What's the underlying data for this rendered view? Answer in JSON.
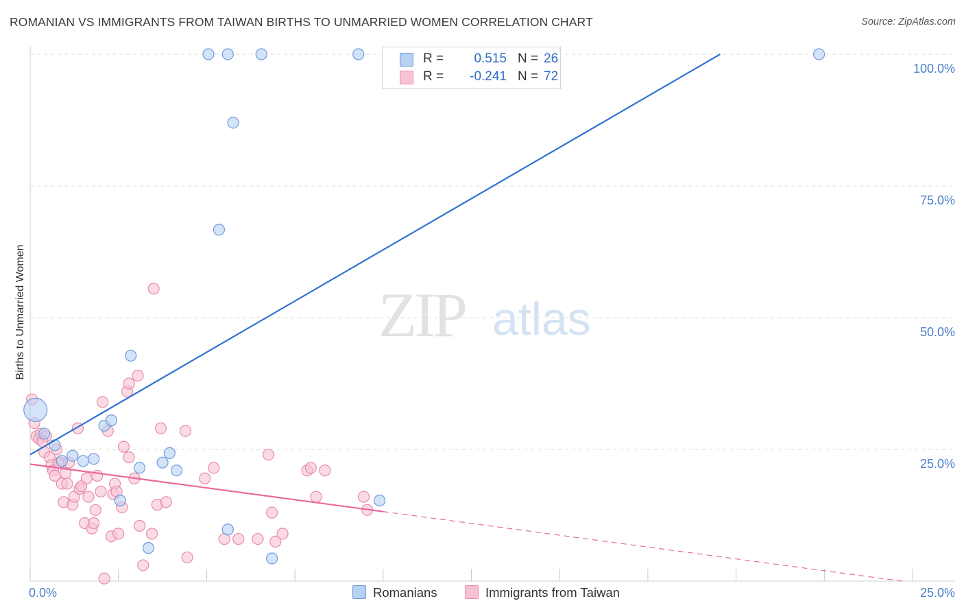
{
  "header": {
    "title": "ROMANIAN VS IMMIGRANTS FROM TAIWAN BIRTHS TO UNMARRIED WOMEN CORRELATION CHART",
    "source": "Source: ZipAtlas.com"
  },
  "watermark": {
    "zip": "ZIP",
    "atlas": "atlas"
  },
  "colors": {
    "blue_fill": "#b7d1f3",
    "blue_stroke": "#6f9bdc",
    "blue_line": "#2f73d0",
    "pink_fill": "#f7c3d3",
    "pink_stroke": "#e98aaa",
    "pink_line": "#e8699a",
    "tick_color": "#4a7fc9",
    "grid": "#dddddd"
  },
  "legend": {
    "series1": {
      "r_label": "R =",
      "r_value": "0.515",
      "n_label": "N =",
      "n_value": "26"
    },
    "series2": {
      "r_label": "R =",
      "r_value": "-0.241",
      "n_label": "N =",
      "n_value": "72"
    }
  },
  "bottom_legend": {
    "series1": "Romanians",
    "series2": "Immigrants from Taiwan"
  },
  "chart_data": {
    "type": "scatter",
    "title": "ROMANIAN VS IMMIGRANTS FROM TAIWAN BIRTHS TO UNMARRIED WOMEN CORRELATION CHART",
    "xlabel": "",
    "ylabel": "Births to Unmarried Women",
    "xlim": [
      0,
      25
    ],
    "ylim": [
      0,
      100
    ],
    "x_tick_labels": [
      "0.0%",
      "25.0%"
    ],
    "y_tick_labels": [
      "100.0%",
      "75.0%",
      "50.0%",
      "25.0%"
    ],
    "y_ticks": [
      100,
      75,
      50,
      25
    ],
    "grid": true,
    "legend_position": "top-center",
    "series": [
      {
        "name": "Romanians",
        "r": 0.515,
        "n": 26,
        "trend": {
          "x0": 0,
          "y0": 24.0,
          "x1": 19.55,
          "y1": 100,
          "dashed_to": null
        },
        "points": [
          {
            "x": 0.15,
            "y": 32.5,
            "size": 17
          },
          {
            "x": 0.4,
            "y": 28.0
          },
          {
            "x": 0.7,
            "y": 25.8
          },
          {
            "x": 0.9,
            "y": 22.8
          },
          {
            "x": 1.2,
            "y": 23.8
          },
          {
            "x": 1.5,
            "y": 22.8
          },
          {
            "x": 1.8,
            "y": 23.2
          },
          {
            "x": 2.1,
            "y": 29.5
          },
          {
            "x": 2.3,
            "y": 30.5
          },
          {
            "x": 2.55,
            "y": 15.3
          },
          {
            "x": 2.85,
            "y": 42.8
          },
          {
            "x": 3.1,
            "y": 21.5
          },
          {
            "x": 3.35,
            "y": 6.3
          },
          {
            "x": 3.75,
            "y": 22.5
          },
          {
            "x": 3.95,
            "y": 24.3
          },
          {
            "x": 4.15,
            "y": 21.0
          },
          {
            "x": 5.05,
            "y": 100
          },
          {
            "x": 5.6,
            "y": 100
          },
          {
            "x": 5.35,
            "y": 66.7
          },
          {
            "x": 5.75,
            "y": 87.0
          },
          {
            "x": 6.55,
            "y": 100
          },
          {
            "x": 9.3,
            "y": 100
          },
          {
            "x": 5.6,
            "y": 9.8
          },
          {
            "x": 6.85,
            "y": 4.3
          },
          {
            "x": 9.9,
            "y": 15.3
          },
          {
            "x": 22.35,
            "y": 100
          }
        ]
      },
      {
        "name": "Immigrants from Taiwan",
        "r": -0.241,
        "n": 72,
        "trend": {
          "x0": 0,
          "y0": 22.2,
          "x1": 10.0,
          "y1": 13.2,
          "dashed_to": {
            "x": 24.7,
            "y": 0
          }
        },
        "points": [
          {
            "x": 0.05,
            "y": 34.5
          },
          {
            "x": 0.12,
            "y": 30.0
          },
          {
            "x": 0.18,
            "y": 27.5
          },
          {
            "x": 0.25,
            "y": 27.0
          },
          {
            "x": 0.3,
            "y": 28.0
          },
          {
            "x": 0.4,
            "y": 24.5
          },
          {
            "x": 0.45,
            "y": 27.5
          },
          {
            "x": 0.55,
            "y": 23.5
          },
          {
            "x": 0.6,
            "y": 22.0
          },
          {
            "x": 0.65,
            "y": 21.0
          },
          {
            "x": 0.7,
            "y": 20.0
          },
          {
            "x": 0.75,
            "y": 25.0
          },
          {
            "x": 0.85,
            "y": 22.5
          },
          {
            "x": 0.9,
            "y": 18.5
          },
          {
            "x": 0.95,
            "y": 15.0
          },
          {
            "x": 1.0,
            "y": 20.5
          },
          {
            "x": 1.05,
            "y": 18.5
          },
          {
            "x": 1.1,
            "y": 22.5
          },
          {
            "x": 1.2,
            "y": 14.5
          },
          {
            "x": 1.25,
            "y": 16.0
          },
          {
            "x": 1.35,
            "y": 29.0
          },
          {
            "x": 1.4,
            "y": 17.5
          },
          {
            "x": 1.45,
            "y": 18.0
          },
          {
            "x": 1.55,
            "y": 11.0
          },
          {
            "x": 1.6,
            "y": 19.5
          },
          {
            "x": 1.65,
            "y": 16.0
          },
          {
            "x": 1.75,
            "y": 10.0
          },
          {
            "x": 1.8,
            "y": 11.0
          },
          {
            "x": 1.85,
            "y": 13.5
          },
          {
            "x": 1.9,
            "y": 20.0
          },
          {
            "x": 2.0,
            "y": 17.0
          },
          {
            "x": 2.05,
            "y": 34.0
          },
          {
            "x": 2.1,
            "y": 0.5
          },
          {
            "x": 2.2,
            "y": 28.5
          },
          {
            "x": 2.3,
            "y": 8.5
          },
          {
            "x": 2.35,
            "y": 16.5
          },
          {
            "x": 2.4,
            "y": 18.5
          },
          {
            "x": 2.45,
            "y": 17.0
          },
          {
            "x": 2.5,
            "y": 9.0
          },
          {
            "x": 2.6,
            "y": 14.0
          },
          {
            "x": 2.65,
            "y": 25.5
          },
          {
            "x": 2.75,
            "y": 36.0
          },
          {
            "x": 2.8,
            "y": 37.5
          },
          {
            "x": 2.8,
            "y": 23.5
          },
          {
            "x": 2.95,
            "y": 19.5
          },
          {
            "x": 3.05,
            "y": 39.0
          },
          {
            "x": 3.1,
            "y": 10.5
          },
          {
            "x": 3.2,
            "y": 3.0
          },
          {
            "x": 3.45,
            "y": 9.0
          },
          {
            "x": 3.5,
            "y": 55.5
          },
          {
            "x": 3.6,
            "y": 14.5
          },
          {
            "x": 3.7,
            "y": 29.0
          },
          {
            "x": 3.85,
            "y": 15.0
          },
          {
            "x": 4.4,
            "y": 28.5
          },
          {
            "x": 4.45,
            "y": 4.5
          },
          {
            "x": 4.95,
            "y": 19.5
          },
          {
            "x": 5.2,
            "y": 21.5
          },
          {
            "x": 5.5,
            "y": 8.0
          },
          {
            "x": 5.9,
            "y": 8.0
          },
          {
            "x": 6.45,
            "y": 8.0
          },
          {
            "x": 6.75,
            "y": 24.0
          },
          {
            "x": 6.85,
            "y": 13.0
          },
          {
            "x": 6.95,
            "y": 7.5
          },
          {
            "x": 7.15,
            "y": 9.0
          },
          {
            "x": 7.85,
            "y": 21.0
          },
          {
            "x": 7.95,
            "y": 21.5
          },
          {
            "x": 8.1,
            "y": 16.0
          },
          {
            "x": 8.35,
            "y": 21.0
          },
          {
            "x": 9.45,
            "y": 16.0
          },
          {
            "x": 9.55,
            "y": 13.5
          },
          {
            "x": 0.35,
            "y": 26.5
          },
          {
            "x": 0.8,
            "y": 22.5
          }
        ]
      }
    ]
  }
}
